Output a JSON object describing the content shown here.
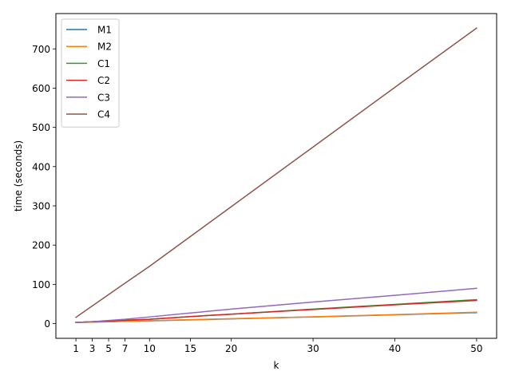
{
  "chart_data": {
    "type": "line",
    "title": "",
    "xlabel": "k",
    "ylabel": "time (seconds)",
    "x": [
      1,
      3,
      5,
      7,
      10,
      15,
      20,
      30,
      40,
      50
    ],
    "xticks": [
      1,
      3,
      5,
      7,
      10,
      15,
      20,
      30,
      40,
      50
    ],
    "yticks": [
      0,
      100,
      200,
      300,
      400,
      500,
      600,
      700
    ],
    "xlim": [
      -1.45,
      52.45
    ],
    "ylim": [
      -37.5,
      790
    ],
    "grid": false,
    "legend_position": "top-left",
    "series": [
      {
        "name": "M1",
        "color": "#1f77b4",
        "values": [
          3,
          3.8,
          4.8,
          6,
          7,
          9.5,
          12,
          17,
          22.5,
          28
        ]
      },
      {
        "name": "M2",
        "color": "#ff7f0e",
        "values": [
          3,
          4,
          5,
          6,
          7.5,
          10,
          12.5,
          17.5,
          23,
          29
        ]
      },
      {
        "name": "C1",
        "color": "#2ca02c",
        "values": [
          3,
          5,
          6.5,
          8.5,
          11,
          18,
          24,
          37,
          49,
          61
        ]
      },
      {
        "name": "C2",
        "color": "#d62728",
        "values": [
          3,
          5,
          6.5,
          8.5,
          11,
          18,
          24,
          36,
          48,
          59
        ]
      },
      {
        "name": "C3",
        "color": "#9467bd",
        "values": [
          3,
          5,
          8,
          11,
          17,
          27,
          37,
          55,
          72,
          90
        ]
      },
      {
        "name": "C4",
        "color": "#8c564b",
        "values": [
          16,
          45,
          74,
          103,
          146,
          222,
          298,
          450,
          602,
          753
        ]
      }
    ]
  }
}
